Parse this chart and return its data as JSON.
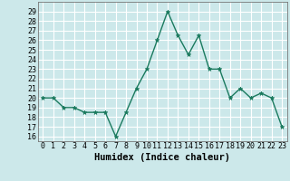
{
  "x": [
    0,
    1,
    2,
    3,
    4,
    5,
    6,
    7,
    8,
    9,
    10,
    11,
    12,
    13,
    14,
    15,
    16,
    17,
    18,
    19,
    20,
    21,
    22,
    23
  ],
  "y": [
    20,
    20,
    19,
    19,
    18.5,
    18.5,
    18.5,
    16,
    18.5,
    21,
    23,
    26,
    29,
    26.5,
    24.5,
    26.5,
    23,
    23,
    20,
    21,
    20,
    20.5,
    20,
    17
  ],
  "line_color": "#1a7a5e",
  "bg_color": "#cce8ea",
  "grid_color": "#ffffff",
  "xlabel": "Humidex (Indice chaleur)",
  "yticks": [
    16,
    17,
    18,
    19,
    20,
    21,
    22,
    23,
    24,
    25,
    26,
    27,
    28,
    29
  ],
  "ylim": [
    15.5,
    30.0
  ],
  "xlim": [
    -0.5,
    23.5
  ],
  "marker": "*",
  "linewidth": 1.0,
  "markersize": 3.5,
  "xlabel_fontsize": 7.5,
  "tick_fontsize": 6.0
}
